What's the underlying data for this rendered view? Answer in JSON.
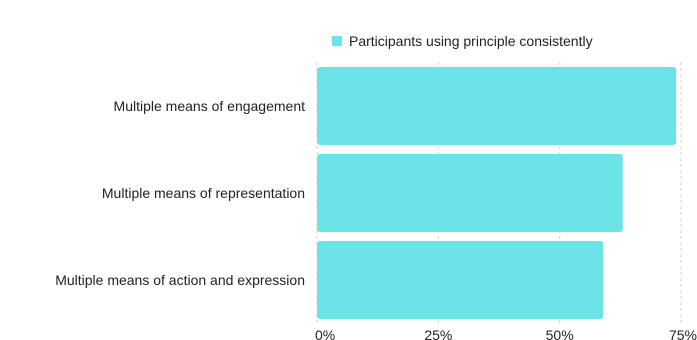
{
  "chart_data": {
    "type": "bar",
    "orientation": "horizontal",
    "categories": [
      "Multiple means of engagement",
      "Multiple means of representation",
      "Multiple means of action and expression"
    ],
    "series": [
      {
        "name": "Participants using principle consistently",
        "values": [
          0.74,
          0.63,
          0.59
        ],
        "color": "#6ce3e6"
      }
    ],
    "xlim": [
      0,
      0.75
    ],
    "xticks": [
      {
        "value": 0,
        "label": "0%"
      },
      {
        "value": 0.25,
        "label": "25%"
      },
      {
        "value": 0.5,
        "label": "50%"
      },
      {
        "value": 0.75,
        "label": "75%"
      }
    ],
    "grid": true,
    "legend_position": "top",
    "title": "",
    "xlabel": "",
    "ylabel": ""
  },
  "colors": {
    "bar": "#6ce3e6",
    "grid": "#d0d0d0",
    "text": "#222222"
  }
}
